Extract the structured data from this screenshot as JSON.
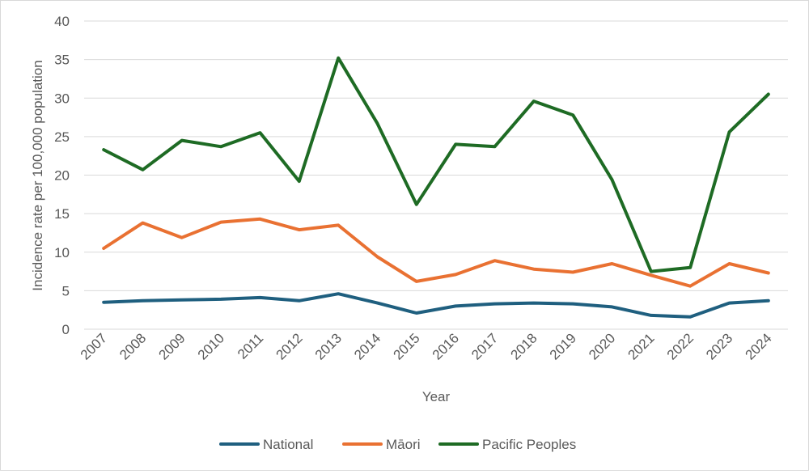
{
  "chart_data": {
    "type": "line",
    "title": "",
    "xlabel": "Year",
    "ylabel": "Incidence rate per 100,000 population",
    "ylim": [
      0,
      40
    ],
    "yticks": [
      0,
      5,
      10,
      15,
      20,
      25,
      30,
      35,
      40
    ],
    "grid": true,
    "legend_position": "bottom",
    "categories": [
      "2007",
      "2008",
      "2009",
      "2010",
      "2011",
      "2012",
      "2013",
      "2014",
      "2015",
      "2016",
      "2017",
      "2018",
      "2019",
      "2020",
      "2021",
      "2022",
      "2023",
      "2024"
    ],
    "series": [
      {
        "name": "National",
        "color": "#1f5f7f",
        "values": [
          3.5,
          3.7,
          3.8,
          3.9,
          4.1,
          3.7,
          4.6,
          3.4,
          2.1,
          3.0,
          3.3,
          3.4,
          3.3,
          2.9,
          1.8,
          1.6,
          3.4,
          3.7
        ]
      },
      {
        "name": "Māori",
        "color": "#e97132",
        "values": [
          10.5,
          13.8,
          11.9,
          13.9,
          14.3,
          12.9,
          13.5,
          9.4,
          6.2,
          7.1,
          8.9,
          7.8,
          7.4,
          8.5,
          7.0,
          5.6,
          8.5,
          7.3
        ]
      },
      {
        "name": "Pacific Peoples",
        "color": "#1e6b24",
        "values": [
          23.3,
          20.7,
          24.5,
          23.7,
          25.5,
          19.2,
          35.2,
          26.7,
          16.2,
          24.0,
          23.7,
          29.6,
          27.8,
          19.4,
          7.5,
          8.0,
          25.6,
          30.5
        ]
      }
    ]
  }
}
